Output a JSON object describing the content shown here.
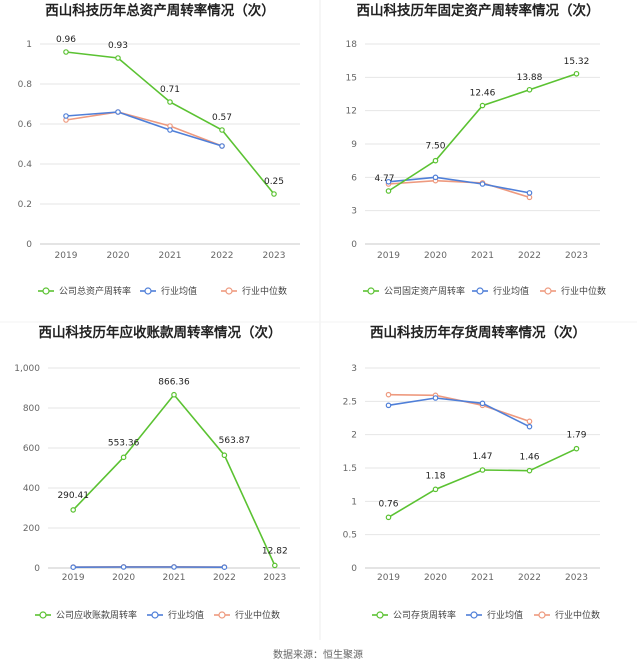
{
  "source": "数据来源：恒生聚源",
  "colors": {
    "company": "#5bc232",
    "industry_avg": "#4f7fd8",
    "industry_median": "#ee9a7f",
    "grid": "#e6e6e6",
    "axis": "#c8c8c8"
  },
  "chart_data": [
    {
      "type": "line",
      "title": "西山科技历年总资产周转率情况（次）",
      "categories": [
        "2019",
        "2020",
        "2021",
        "2022",
        "2023"
      ],
      "ylim": [
        0,
        1
      ],
      "yticks": [
        0,
        0.2,
        0.4,
        0.6,
        0.8,
        1
      ],
      "ytick_labels": [
        "0",
        "0.2",
        "0.4",
        "0.6",
        "0.8",
        "1"
      ],
      "series": [
        {
          "name": "公司总资产周转率",
          "role": "company",
          "values": [
            0.96,
            0.93,
            0.71,
            0.57,
            0.25
          ],
          "labels": [
            "0.96",
            "0.93",
            "0.71",
            "0.57",
            "0.25"
          ]
        },
        {
          "name": "行业均值",
          "role": "industry_avg",
          "values": [
            0.64,
            0.66,
            0.57,
            0.49,
            null
          ]
        },
        {
          "name": "行业中位数",
          "role": "industry_median",
          "values": [
            0.62,
            0.66,
            0.59,
            0.49,
            null
          ]
        }
      ]
    },
    {
      "type": "line",
      "title": "西山科技历年固定资产周转率情况（次）",
      "categories": [
        "2019",
        "2020",
        "2021",
        "2022",
        "2023"
      ],
      "ylim": [
        0,
        18
      ],
      "yticks": [
        0,
        3,
        6,
        9,
        12,
        15,
        18
      ],
      "ytick_labels": [
        "0",
        "3",
        "6",
        "9",
        "12",
        "15",
        "18"
      ],
      "series": [
        {
          "name": "公司固定资产周转率",
          "role": "company",
          "values": [
            4.77,
            7.5,
            12.46,
            13.88,
            15.32
          ],
          "labels": [
            "4.77",
            "7.50",
            "12.46",
            "13.88",
            "15.32"
          ]
        },
        {
          "name": "行业均值",
          "role": "industry_avg",
          "values": [
            5.6,
            6.0,
            5.4,
            4.6,
            null
          ]
        },
        {
          "name": "行业中位数",
          "role": "industry_median",
          "values": [
            5.4,
            5.7,
            5.5,
            4.2,
            null
          ]
        }
      ]
    },
    {
      "type": "line",
      "title": "西山科技历年应收账款周转率情况（次）",
      "categories": [
        "2019",
        "2020",
        "2021",
        "2022",
        "2023"
      ],
      "ylim": [
        0,
        1000
      ],
      "yticks": [
        0,
        200,
        400,
        600,
        800,
        1000
      ],
      "ytick_labels": [
        "0",
        "200",
        "400",
        "600",
        "800",
        "1,000"
      ],
      "series": [
        {
          "name": "公司应收账款周转率",
          "role": "company",
          "values": [
            290.41,
            553.36,
            866.36,
            563.87,
            12.82
          ],
          "labels": [
            "290.41",
            "553.36",
            "866.36",
            "563.87",
            "12.82"
          ]
        },
        {
          "name": "行业均值",
          "role": "industry_avg",
          "values": [
            4,
            5,
            5,
            4,
            null
          ]
        },
        {
          "name": "行业中位数",
          "role": "industry_median",
          "values": [
            5,
            6,
            6,
            5,
            null
          ]
        }
      ]
    },
    {
      "type": "line",
      "title": "西山科技历年存货周转率情况（次）",
      "categories": [
        "2019",
        "2020",
        "2021",
        "2022",
        "2023"
      ],
      "ylim": [
        0,
        3
      ],
      "yticks": [
        0,
        0.5,
        1,
        1.5,
        2,
        2.5,
        3
      ],
      "ytick_labels": [
        "0",
        "0.5",
        "1",
        "1.5",
        "2",
        "2.5",
        "3"
      ],
      "series": [
        {
          "name": "公司存货周转率",
          "role": "company",
          "values": [
            0.76,
            1.18,
            1.47,
            1.46,
            1.79
          ],
          "labels": [
            "0.76",
            "1.18",
            "1.47",
            "1.46",
            "1.79"
          ]
        },
        {
          "name": "行业均值",
          "role": "industry_avg",
          "values": [
            2.44,
            2.55,
            2.47,
            2.12,
            null
          ]
        },
        {
          "name": "行业中位数",
          "role": "industry_median",
          "values": [
            2.6,
            2.59,
            2.44,
            2.2,
            null
          ]
        }
      ]
    }
  ]
}
